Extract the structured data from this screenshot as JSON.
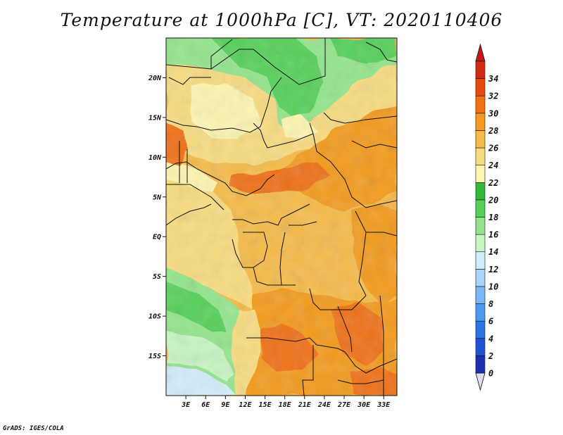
{
  "title": "Temperature at 1000hPa [C], VT: 2020110406",
  "credit": "GrADS: IGES/COLA",
  "map": {
    "lon_range": [
      0,
      35
    ],
    "lat_range": [
      -20,
      25
    ],
    "lat_ticks": [
      {
        "value": 20,
        "label": "20N"
      },
      {
        "value": 15,
        "label": "15N"
      },
      {
        "value": 10,
        "label": "10N"
      },
      {
        "value": 5,
        "label": "5N"
      },
      {
        "value": 0,
        "label": "EQ"
      },
      {
        "value": -5,
        "label": "5S"
      },
      {
        "value": -10,
        "label": "10S"
      },
      {
        "value": -15,
        "label": "15S"
      }
    ],
    "lon_ticks": [
      {
        "value": 3,
        "label": "3E"
      },
      {
        "value": 6,
        "label": "6E"
      },
      {
        "value": 9,
        "label": "9E"
      },
      {
        "value": 12,
        "label": "12E"
      },
      {
        "value": 15,
        "label": "15E"
      },
      {
        "value": 18,
        "label": "18E"
      },
      {
        "value": 21,
        "label": "21E"
      },
      {
        "value": 24,
        "label": "24E"
      },
      {
        "value": 27,
        "label": "27E"
      },
      {
        "value": 30,
        "label": "30E"
      },
      {
        "value": 33,
        "label": "33E"
      }
    ]
  },
  "colorbar": {
    "levels": [
      "0",
      "2",
      "4",
      "6",
      "8",
      "10",
      "12",
      "14",
      "16",
      "18",
      "20",
      "22",
      "24",
      "26",
      "28",
      "30",
      "32",
      "34"
    ],
    "colors": [
      "#160c7a",
      "#1b2fb0",
      "#1f52d6",
      "#2c74e6",
      "#4c98ee",
      "#78b8f4",
      "#a7d4f8",
      "#d3ecfb",
      "#c8f5c4",
      "#93e58c",
      "#55d05a",
      "#33b83a",
      "#fcf5b0",
      "#f9dc80",
      "#f6bb48",
      "#f39a1f",
      "#f07012",
      "#e84a10",
      "#d42a14"
    ],
    "below_color": "#ddddf3",
    "above_color": "#c21b17"
  }
}
